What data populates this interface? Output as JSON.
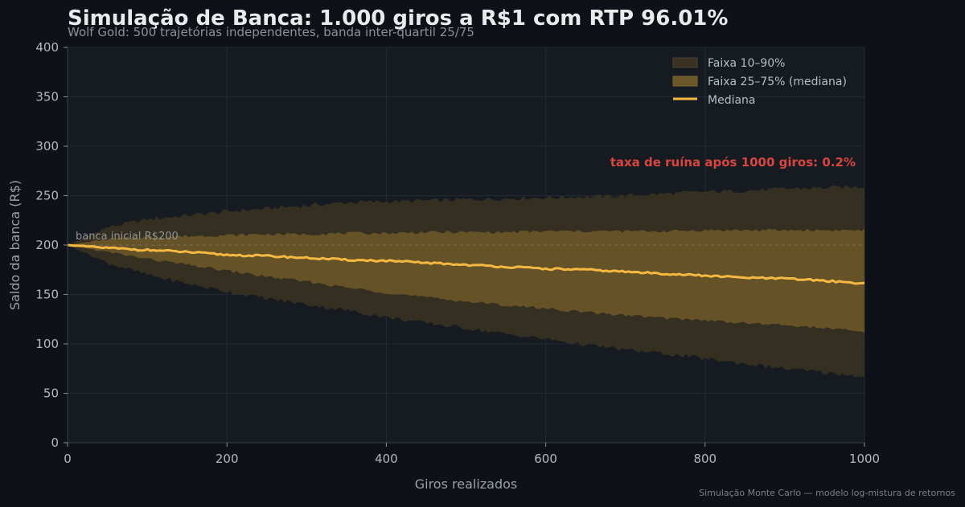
{
  "footer": "Simulação Monte Carlo — modelo log-mistura de retornos",
  "colors": {
    "background": "#0e1117",
    "plot_bg": "#161b22",
    "band_outer": "#3a3220",
    "band_inner": "#6b5628",
    "median": "#f5b942",
    "ruin_text": "#d9453f",
    "grid": "#232a33"
  },
  "chart_data": {
    "type": "area",
    "title": "Simulação de Banca: 1.000 giros a R$1 com RTP 96.01%",
    "subtitle": "Wolf Gold: 500 trajetórias independentes, banda inter-quartil 25/75",
    "xlabel": "Giros realizados",
    "ylabel": "Saldo da banca (R$)",
    "xlim": [
      0,
      1000
    ],
    "ylim": [
      0,
      400
    ],
    "x_ticks": [
      "0",
      "200",
      "400",
      "600",
      "800",
      "1000"
    ],
    "y_ticks": [
      "0",
      "50",
      "100",
      "150",
      "200",
      "250",
      "300",
      "350",
      "400"
    ],
    "grid": true,
    "legend_position": "top-right",
    "legend": [
      "Faixa 10–90%",
      "Faixa 25–75% (mediana)",
      "Mediana"
    ],
    "x": [
      0,
      50,
      100,
      150,
      200,
      250,
      300,
      350,
      400,
      450,
      500,
      550,
      600,
      650,
      700,
      750,
      800,
      850,
      900,
      950,
      1000
    ],
    "series": [
      {
        "name": "Faixa 10–90%",
        "kind": "band",
        "lower": [
          200,
          182,
          170,
          161,
          153,
          146,
          140,
          134,
          127,
          121,
          116,
          110,
          105,
          99,
          94,
          90,
          85,
          80,
          75,
          71,
          67
        ],
        "upper": [
          200,
          218,
          226,
          230,
          234,
          237,
          240,
          243,
          244,
          245,
          246,
          247,
          248,
          249,
          250,
          252,
          254,
          255,
          257,
          258,
          259
        ]
      },
      {
        "name": "Faixa 25–75% (mediana)",
        "kind": "band",
        "lower": [
          200,
          193,
          186,
          180,
          174,
          168,
          163,
          157,
          152,
          147,
          143,
          139,
          136,
          132,
          129,
          126,
          124,
          121,
          119,
          116,
          112
        ],
        "upper": [
          200,
          206,
          208,
          209,
          210,
          211,
          211,
          212,
          212,
          213,
          213,
          213,
          214,
          214,
          214,
          214,
          215,
          215,
          215,
          215,
          215
        ]
      },
      {
        "name": "Mediana",
        "kind": "line",
        "values": [
          200,
          197,
          195,
          193,
          190,
          189,
          187,
          185,
          184,
          182,
          180,
          178,
          176,
          175,
          173,
          171,
          169,
          167,
          166,
          164,
          161
        ]
      }
    ],
    "annotations": [
      {
        "text": "taxa de ruína após 1000 giros: 0.2%"
      },
      {
        "text": "banca inicial R$200",
        "y": 200
      }
    ]
  }
}
